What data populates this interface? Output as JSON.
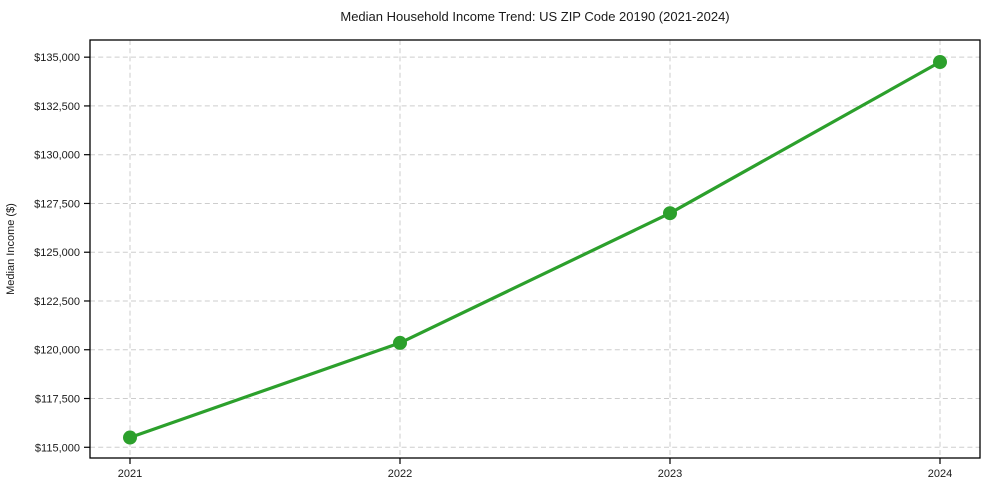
{
  "chart_data": {
    "type": "line",
    "title": "Median Household Income Trend: US ZIP Code 20190 (2021-2024)",
    "xlabel": "",
    "ylabel": "Median Income ($)",
    "x": [
      "2021",
      "2022",
      "2023",
      "2024"
    ],
    "values": [
      115500,
      120350,
      127000,
      134750
    ],
    "y_ticks": [
      {
        "value": 115000,
        "label": "$115,000"
      },
      {
        "value": 117500,
        "label": "$117,500"
      },
      {
        "value": 120000,
        "label": "$120,000"
      },
      {
        "value": 122500,
        "label": "$122,500"
      },
      {
        "value": 125000,
        "label": "$125,000"
      },
      {
        "value": 127500,
        "label": "$127,500"
      },
      {
        "value": 130000,
        "label": "$130,000"
      },
      {
        "value": 132500,
        "label": "$132,500"
      },
      {
        "value": 135000,
        "label": "$135,000"
      }
    ],
    "ylim": [
      114450,
      135880
    ],
    "grid": true,
    "grid_style": "dashed",
    "legend": false,
    "line_color": "#2ca02c",
    "marker": "circle",
    "grid_color": "#cdcdcd",
    "axis_color": "#000000",
    "text_color": "#1a1a1a",
    "background": "#ffffff"
  }
}
